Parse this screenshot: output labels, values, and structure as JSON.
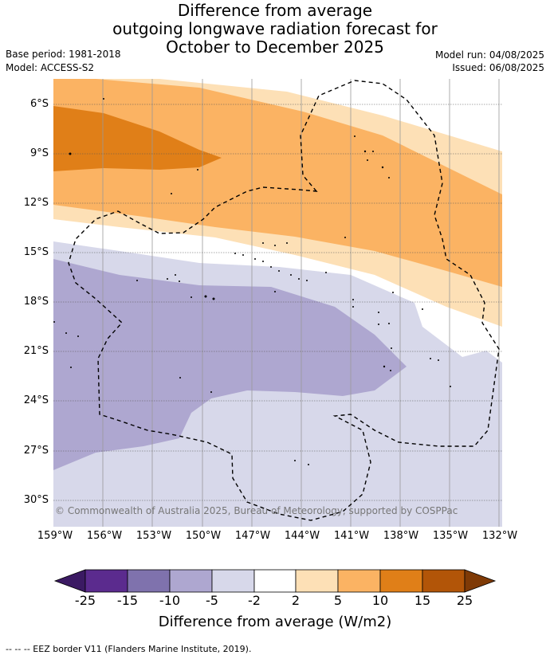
{
  "title_lines": [
    "Difference from average",
    "outgoing longwave radiation forecast for",
    "October to December 2025"
  ],
  "base_period": "Base period: 1981-2018",
  "model": "Model: ACCESS-S2",
  "model_run": "Model run: 04/08/2025",
  "issued": "Issued: 06/08/2025",
  "copyright": "© Commonwealth of Australia 2025, Bureau of Meteorology, supported by COSPPac",
  "lat_labels": [
    "6°S",
    "9°S",
    "12°S",
    "15°S",
    "18°S",
    "21°S",
    "24°S",
    "27°S",
    "30°S"
  ],
  "lon_labels": [
    "159°W",
    "156°W",
    "153°W",
    "150°W",
    "147°W",
    "144°W",
    "141°W",
    "138°W",
    "135°W",
    "132°W"
  ],
  "colorbar": {
    "ticks": [
      "-25",
      "-15",
      "-10",
      "-5",
      "-2",
      "2",
      "5",
      "10",
      "15",
      "25"
    ],
    "colors": [
      "#3b1a63",
      "#5b2b8e",
      "#7f72ad",
      "#aea7d0",
      "#d7d8ea",
      "#ffffff",
      "#fde0b6",
      "#fbb363",
      "#e07f18",
      "#b25508",
      "#7f3a06"
    ],
    "title": "Difference from average (W/m2)"
  },
  "footnote": "--  --  -- EEZ border V11 (Flanders Marine Institute, 2019)."
}
